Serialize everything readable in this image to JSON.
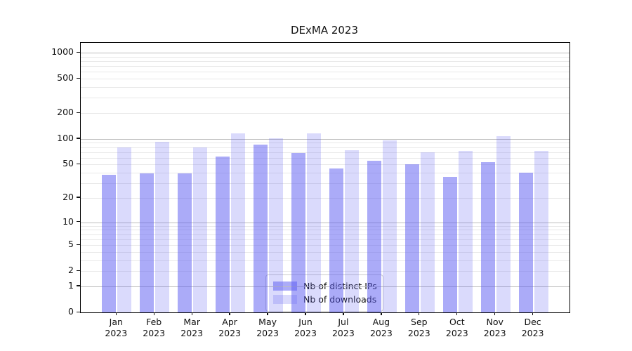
{
  "chart_data": {
    "type": "bar",
    "title": "DExMA 2023",
    "categories": [
      "Jan 2023",
      "Feb 2023",
      "Mar 2023",
      "Apr 2023",
      "May 2023",
      "Jun 2023",
      "Jul 2023",
      "Aug 2023",
      "Sep 2023",
      "Oct 2023",
      "Nov 2023",
      "Dec 2023"
    ],
    "series": [
      {
        "name": "Nb of distinct IPs",
        "color": "rgba(88,88,242,0.50)",
        "color_hex": "#a9a9f4",
        "values": [
          38,
          39,
          39,
          62,
          85,
          68,
          45,
          56,
          50,
          36,
          53,
          40
        ]
      },
      {
        "name": "Nb of downloads",
        "color": "rgba(88,88,242,0.22)",
        "color_hex": "#dcdcf9",
        "values": [
          80,
          93,
          79,
          117,
          102,
          116,
          74,
          96,
          70,
          72,
          108,
          72
        ]
      }
    ],
    "yscale": "log10(value+1)",
    "yticks": [
      0,
      1,
      2,
      5,
      10,
      20,
      50,
      100,
      200,
      500,
      1000
    ],
    "ylim": [
      0,
      1000
    ],
    "xlabel": "",
    "ylabel": "",
    "grid": true,
    "legend_position": "lower center"
  },
  "colors": {
    "major_grid": "#bdbdbd",
    "minor_grid": "#e8e8e8",
    "axis": "#000000",
    "text": "#111111",
    "legend_border": "#cccccc",
    "legend_bg": "#ffffff"
  }
}
